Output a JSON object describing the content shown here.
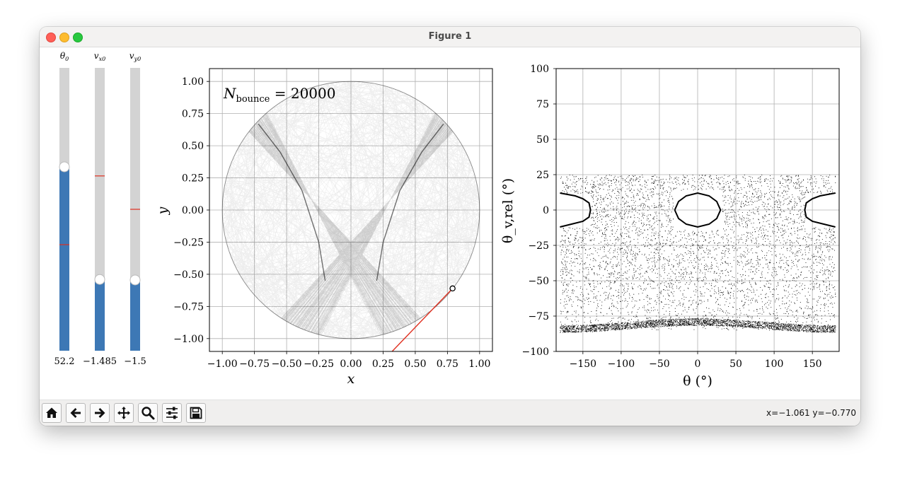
{
  "window": {
    "title": "Figure 1"
  },
  "sliders": [
    {
      "label": "θ",
      "sub": "0",
      "value_text": "52.2",
      "fill_fraction": 0.65,
      "init_fraction": 0.375
    },
    {
      "label": "v",
      "sub": "x0",
      "value_text": "−1.485",
      "fill_fraction": 0.252,
      "init_fraction": 0.618
    },
    {
      "label": "v",
      "sub": "y0",
      "value_text": "−1.5",
      "fill_fraction": 0.25,
      "init_fraction": 0.5
    }
  ],
  "annotation": {
    "main": "N",
    "sub": "bounce",
    "rest": " = 20000"
  },
  "toolbar": {
    "buttons": [
      "home-icon",
      "back-arrow-icon",
      "forward-arrow-icon",
      "pan-move-icon",
      "zoom-magnifier-icon",
      "configure-subplots-icon",
      "save-disk-icon"
    ],
    "coords": "x=−1.061 y=−0.770"
  },
  "chart_data": [
    {
      "type": "line",
      "title": "",
      "xlabel": "x",
      "ylabel": "y",
      "xlim": [
        -1.1,
        1.1
      ],
      "ylim": [
        -1.1,
        1.1
      ],
      "grid": true,
      "xticks": [
        "−1.00",
        "−0.75",
        "−0.50",
        "−0.25",
        "0.00",
        "0.25",
        "0.50",
        "0.75",
        "1.00"
      ],
      "yticks": [
        "1.00",
        "0.75",
        "0.50",
        "0.25",
        "0.00",
        "−0.25",
        "−0.50",
        "−0.75",
        "−1.00"
      ],
      "boundary": "unit circle",
      "caustic_points": [
        [
          -0.72,
          0.67
        ],
        [
          -0.55,
          0.45
        ],
        [
          -0.38,
          0.15
        ],
        [
          -0.25,
          -0.25
        ],
        [
          -0.2,
          -0.55
        ],
        [
          0.72,
          0.67
        ],
        [
          0.55,
          0.45
        ],
        [
          0.38,
          0.15
        ],
        [
          0.25,
          -0.25
        ],
        [
          0.2,
          -0.55
        ]
      ],
      "current_position": [
        0.79,
        -0.61
      ],
      "velocity_line": {
        "from": [
          0.79,
          -0.61
        ],
        "to": [
          0.32,
          -1.1
        ]
      }
    },
    {
      "type": "scatter",
      "title": "",
      "xlabel": "θ (°)",
      "ylabel": "θ_v,rel (°)",
      "xlim": [
        -185,
        185
      ],
      "ylim": [
        -100,
        100
      ],
      "grid": true,
      "xticks": [
        "−150",
        "−100",
        "−50",
        "0",
        "50",
        "100",
        "150"
      ],
      "yticks": [
        "100",
        "75",
        "50",
        "25",
        "0",
        "−25",
        "−50",
        "−75",
        "−100"
      ],
      "island_left": [
        [
          -180,
          12
        ],
        [
          -160,
          10
        ],
        [
          -150,
          8
        ],
        [
          -142,
          5
        ],
        [
          -140,
          0
        ],
        [
          -142,
          -5
        ],
        [
          -150,
          -8
        ],
        [
          -165,
          -10
        ],
        [
          -180,
          -12
        ]
      ],
      "island_center": [
        [
          -30,
          0
        ],
        [
          -25,
          6
        ],
        [
          -15,
          10
        ],
        [
          0,
          12
        ],
        [
          15,
          10
        ],
        [
          25,
          6
        ],
        [
          30,
          0
        ],
        [
          25,
          -6
        ],
        [
          15,
          -10
        ],
        [
          0,
          -12
        ],
        [
          -15,
          -10
        ],
        [
          -25,
          -6
        ],
        [
          -30,
          0
        ]
      ],
      "island_right": [
        [
          180,
          12
        ],
        [
          160,
          10
        ],
        [
          150,
          8
        ],
        [
          142,
          5
        ],
        [
          140,
          0
        ],
        [
          142,
          -5
        ],
        [
          150,
          -8
        ],
        [
          165,
          -10
        ],
        [
          180,
          -12
        ]
      ],
      "chaotic_band": {
        "y_range": [
          -85,
          25
        ],
        "dense_floor": -82
      }
    }
  ]
}
